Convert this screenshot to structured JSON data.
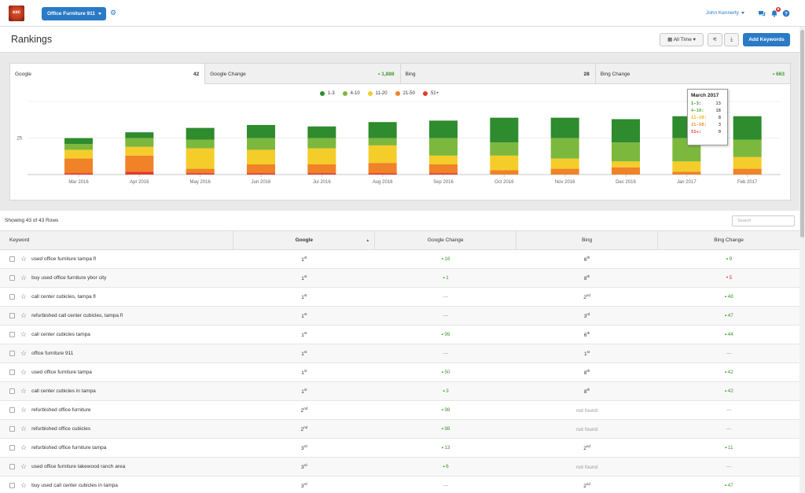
{
  "header": {
    "logo_text": "exc",
    "site_selector": "Office Furniture 911",
    "user_name": "John Kennerty",
    "notifications_count": "6"
  },
  "page": {
    "title": "Rankings",
    "date_range": "All Time",
    "add_keywords": "Add Keywords"
  },
  "tabs": [
    {
      "label": "Google",
      "value": "42"
    },
    {
      "label": "Google Change",
      "value": "1,888"
    },
    {
      "label": "Bing",
      "value": "28"
    },
    {
      "label": "Bing Change",
      "value": "663"
    }
  ],
  "legend": [
    "1-3",
    "4-10",
    "11-20",
    "21-50",
    "51+"
  ],
  "colors": {
    "1-3": "#2e8b2e",
    "4-10": "#7cb83e",
    "11-20": "#f5cd2a",
    "21-50": "#f08228",
    "51+": "#e23b28",
    "accent": "#2a7ac6"
  },
  "chart_data": {
    "type": "bar",
    "stacked": true,
    "categories": [
      "Mar 2016",
      "Apr 2016",
      "May 2016",
      "Jun 2016",
      "Jul 2016",
      "Aug 2016",
      "Sep 2016",
      "Oct 2016",
      "Nov 2016",
      "Dec 2016",
      "Jan 2017",
      "Feb 2017",
      "Mar 2017"
    ],
    "series": [
      {
        "name": "51+",
        "values": [
          1,
          2,
          1,
          1,
          1,
          1,
          1,
          0,
          0,
          0,
          0,
          0,
          0
        ]
      },
      {
        "name": "21-50",
        "values": [
          10,
          11,
          3,
          6,
          6,
          7,
          6,
          3,
          4,
          5,
          2,
          4,
          3
        ]
      },
      {
        "name": "11-20",
        "values": [
          6,
          6,
          14,
          10,
          11,
          12,
          6,
          10,
          7,
          4,
          7,
          8,
          8
        ]
      },
      {
        "name": "4-10",
        "values": [
          4,
          6,
          6,
          8,
          7,
          5,
          12,
          9,
          14,
          13,
          16,
          12,
          18
        ]
      },
      {
        "name": "1-3",
        "values": [
          4,
          4,
          8,
          9,
          8,
          11,
          12,
          17,
          14,
          16,
          15,
          16,
          13
        ]
      }
    ],
    "yticks": [
      25
    ],
    "ylim": [
      0,
      48
    ],
    "grid": true
  },
  "tooltip": {
    "title": "March 2017",
    "rows": [
      {
        "label": "1-3:",
        "value": "13"
      },
      {
        "label": "4-10:",
        "value": "18"
      },
      {
        "label": "11-20:",
        "value": "8"
      },
      {
        "label": "21-50:",
        "value": "3"
      },
      {
        "label": "51+:",
        "value": "0"
      }
    ]
  },
  "table": {
    "showing": "Showing 43 of 43 Rows",
    "search_placeholder": "Search",
    "columns": [
      "Keyword",
      "Google",
      "Google Change",
      "Bing",
      "Bing Change"
    ],
    "rows": [
      {
        "keyword": "used office furniture tampa fl",
        "google": "1",
        "google_sfx": "st",
        "gchange": "18",
        "gdir": "up",
        "bing": "6",
        "bing_sfx": "th",
        "bchange": "9",
        "bdir": "up"
      },
      {
        "keyword": "buy used office furniture ybor city",
        "google": "1",
        "google_sfx": "st",
        "gchange": "1",
        "gdir": "up",
        "bing": "8",
        "bing_sfx": "th",
        "bchange": "5",
        "bdir": "down"
      },
      {
        "keyword": "call center cubicles, tampa fl",
        "google": "1",
        "google_sfx": "st",
        "gchange": "—",
        "gdir": "none",
        "bing": "2",
        "bing_sfx": "nd",
        "bchange": "48",
        "bdir": "up"
      },
      {
        "keyword": "refurbished call center cubicles, tampa fl",
        "google": "1",
        "google_sfx": "st",
        "gchange": "—",
        "gdir": "none",
        "bing": "3",
        "bing_sfx": "rd",
        "bchange": "47",
        "bdir": "up"
      },
      {
        "keyword": "call center cubicles tampa",
        "google": "1",
        "google_sfx": "st",
        "gchange": "99",
        "gdir": "up",
        "bing": "6",
        "bing_sfx": "th",
        "bchange": "44",
        "bdir": "up"
      },
      {
        "keyword": "office furniture 911",
        "google": "1",
        "google_sfx": "st",
        "gchange": "—",
        "gdir": "none",
        "bing": "1",
        "bing_sfx": "st",
        "bchange": "—",
        "bdir": "none"
      },
      {
        "keyword": "used office furniture tampa",
        "google": "1",
        "google_sfx": "st",
        "gchange": "50",
        "gdir": "up",
        "bing": "8",
        "bing_sfx": "th",
        "bchange": "42",
        "bdir": "up"
      },
      {
        "keyword": "call center cubicles in tampa",
        "google": "1",
        "google_sfx": "st",
        "gchange": "3",
        "gdir": "up",
        "bing": "8",
        "bing_sfx": "th",
        "bchange": "42",
        "bdir": "up"
      },
      {
        "keyword": "refurbished office furniture",
        "google": "2",
        "google_sfx": "nd",
        "gchange": "98",
        "gdir": "up",
        "bing": "not found",
        "bing_sfx": "",
        "bchange": "—",
        "bdir": "none"
      },
      {
        "keyword": "refurbished office cubicles",
        "google": "2",
        "google_sfx": "nd",
        "gchange": "98",
        "gdir": "up",
        "bing": "not found",
        "bing_sfx": "",
        "bchange": "—",
        "bdir": "none"
      },
      {
        "keyword": "refurbished office furniture tampa",
        "google": "3",
        "google_sfx": "rd",
        "gchange": "13",
        "gdir": "up",
        "bing": "2",
        "bing_sfx": "nd",
        "bchange": "11",
        "bdir": "up"
      },
      {
        "keyword": "used office furniture lakewood ranch area",
        "google": "3",
        "google_sfx": "rd",
        "gchange": "6",
        "gdir": "up",
        "bing": "not found",
        "bing_sfx": "",
        "bchange": "—",
        "bdir": "none"
      },
      {
        "keyword": "buy used call center cubicles in tampa",
        "google": "3",
        "google_sfx": "rd",
        "gchange": "—",
        "gdir": "none",
        "bing": "2",
        "bing_sfx": "nd",
        "bchange": "47",
        "bdir": "up"
      }
    ]
  }
}
